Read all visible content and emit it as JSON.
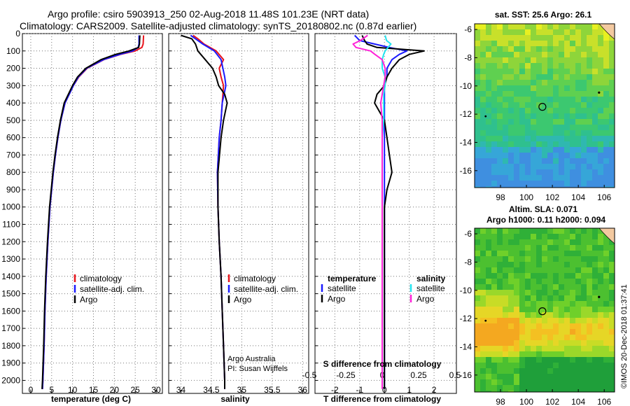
{
  "header": {
    "title_line1": "Argo profile: csiro 5903913_250 02-Aug-2018 11.48S 101.23E (NRT data)",
    "title_line2": "Climatology: CARS2009. Satellite-adjusted climatology: synTS_20180802.nc (0.87d earlier)"
  },
  "colors": {
    "climatology": "#e8141c",
    "satellite_adj": "#1a1aff",
    "argo": "#000000",
    "satellite_salinity": "#22e5f0",
    "argo_salinity_diff": "#ff22d8"
  },
  "depth_ticks": [
    "0",
    "100",
    "200",
    "300",
    "400",
    "500",
    "600",
    "700",
    "800",
    "900",
    "1000",
    "1100",
    "1200",
    "1300",
    "1400",
    "1500",
    "1600",
    "1700",
    "1800",
    "1900",
    "2000"
  ],
  "chart_data": [
    {
      "type": "line",
      "xlabel": "temperature (deg C)",
      "xlim": [
        -2,
        31.5
      ],
      "ylim": [
        0,
        2075
      ],
      "xticks": [
        "0",
        "5",
        "10",
        "15",
        "20",
        "25",
        "30"
      ],
      "legend": [
        "climatology",
        "satellite-adj. clim.",
        "Argo"
      ],
      "depth": [
        10,
        60,
        80,
        100,
        120,
        150,
        200,
        250,
        300,
        400,
        500,
        600,
        700,
        800,
        900,
        1000,
        1200,
        1400,
        1600,
        1800,
        2000,
        2050
      ],
      "series": [
        {
          "name": "climatology",
          "color": "#e8141c",
          "values": [
            27.0,
            26.9,
            26.6,
            25.0,
            21.5,
            17.5,
            13.5,
            11.5,
            10.2,
            8.2,
            7.2,
            6.5,
            5.9,
            5.4,
            5.0,
            4.6,
            4.1,
            3.7,
            3.4,
            3.2,
            2.9,
            2.8
          ]
        },
        {
          "name": "satellite-adj. clim.",
          "color": "#1a1aff",
          "values": [
            25.9,
            25.9,
            25.7,
            24.4,
            21.3,
            17.4,
            13.4,
            11.4,
            10.2,
            8.2,
            7.2,
            6.5,
            5.9,
            5.4,
            5.0,
            4.6,
            4.1,
            3.7,
            3.4,
            3.2,
            2.9,
            2.8
          ]
        },
        {
          "name": "Argo",
          "color": "#000000",
          "values": [
            26.1,
            26.0,
            25.8,
            23.5,
            20.3,
            16.8,
            13.2,
            11.2,
            10.0,
            8.0,
            7.1,
            6.4,
            5.8,
            5.3,
            4.9,
            4.5,
            4.0,
            3.6,
            3.3,
            3.1,
            2.8,
            2.7
          ]
        }
      ]
    },
    {
      "type": "line",
      "xlabel": "salinity",
      "xlim": [
        33.8,
        36.1
      ],
      "ylim": [
        0,
        2075
      ],
      "xticks": [
        "34",
        "34.5",
        "35",
        "35.5",
        "36"
      ],
      "legend": [
        "climatology",
        "satellite-adj. clim.",
        "Argo"
      ],
      "annotations": [
        "Argo Australia",
        "PI: Susan Wijffels"
      ],
      "depth": [
        10,
        30,
        60,
        100,
        150,
        200,
        250,
        300,
        350,
        400,
        500,
        600,
        800,
        1000,
        1200,
        1400,
        1600,
        1800,
        2000,
        2050
      ],
      "series": [
        {
          "name": "climatology",
          "color": "#e8141c",
          "values": [
            34.2,
            34.28,
            34.38,
            34.58,
            34.7,
            34.63,
            34.66,
            34.7,
            34.69,
            34.68,
            34.66,
            34.63,
            34.6,
            34.61,
            34.63,
            34.66,
            34.68,
            34.7,
            34.72,
            34.72
          ]
        },
        {
          "name": "satellite-adj. clim.",
          "color": "#1a1aff",
          "values": [
            34.16,
            34.24,
            34.36,
            34.55,
            34.66,
            34.69,
            34.72,
            34.74,
            34.71,
            34.68,
            34.66,
            34.63,
            34.6,
            34.61,
            34.63,
            34.66,
            34.68,
            34.7,
            34.72,
            34.72
          ]
        },
        {
          "name": "Argo",
          "color": "#000000",
          "values": [
            34.0,
            34.18,
            34.24,
            34.28,
            34.4,
            34.52,
            34.58,
            34.62,
            34.72,
            34.76,
            34.7,
            34.66,
            34.61,
            34.61,
            34.63,
            34.66,
            34.68,
            34.7,
            34.72,
            34.72
          ]
        }
      ]
    },
    {
      "type": "line",
      "xlabel": "T difference from climatology",
      "xlabel_top": "S difference from climatology",
      "xlim": [
        -2.8,
        2.9
      ],
      "ylim": [
        0,
        2075
      ],
      "xticks": [
        "-2",
        "-1",
        "0",
        "1",
        "2"
      ],
      "xticks_top": [
        "-0.5",
        "-0.25",
        "0",
        "0.25",
        "0.5"
      ],
      "legend_titles": [
        "temperature",
        "salinity"
      ],
      "legend": [
        "satellite",
        "Argo",
        "satellite",
        "Argo"
      ],
      "depth": [
        10,
        40,
        60,
        80,
        100,
        120,
        150,
        200,
        250,
        300,
        350,
        400,
        500,
        600,
        700,
        800,
        900,
        1000,
        1200,
        1400,
        1600,
        1800,
        2000,
        2050
      ],
      "series": [
        {
          "name": "temperature satellite",
          "color": "#1a1aff",
          "values": [
            -1.2,
            -1.0,
            -0.4,
            0.2,
            0.9,
            0.6,
            0.3,
            0.1,
            0.1,
            0.0,
            0.0,
            0.0,
            0.0,
            0.0,
            0.0,
            0.0,
            0.0,
            0.0,
            0.0,
            0.0,
            0.0,
            0.0,
            0.0,
            0.0
          ]
        },
        {
          "name": "temperature Argo",
          "color": "#000000",
          "values": [
            -0.9,
            -0.8,
            -0.7,
            -0.3,
            1.6,
            1.0,
            0.6,
            0.3,
            0.1,
            0.0,
            -0.3,
            -0.4,
            0.0,
            0.1,
            0.2,
            0.3,
            0.1,
            0.0,
            0.0,
            0.0,
            0.0,
            0.0,
            0.0,
            0.0
          ]
        },
        {
          "name": "salinity satellite",
          "color": "#22e5f0",
          "values": [
            0.02,
            0.03,
            0.06,
            0.04,
            0.02,
            0.01,
            0.0,
            0.0,
            0.02,
            0.02,
            0.01,
            0.01,
            0.01,
            0.0,
            0.0,
            0.0,
            0.0,
            0.0,
            0.0,
            0.0,
            0.0,
            0.0,
            0.0,
            0.0
          ]
        },
        {
          "name": "salinity Argo",
          "color": "#ff22d8",
          "values": [
            -0.1,
            -0.15,
            -0.2,
            -0.18,
            -0.08,
            -0.05,
            0.0,
            0.02,
            0.02,
            0.01,
            0.0,
            -0.01,
            0.0,
            0.0,
            0.0,
            0.0,
            0.0,
            0.0,
            0.0,
            0.0,
            0.0,
            0.0,
            0.0,
            0.0
          ]
        }
      ]
    },
    {
      "type": "heatmap",
      "title": "sat. SST: 25.6 Argo: 26.1",
      "xlim": [
        96,
        106.8
      ],
      "ylim": [
        -17.2,
        -5.6
      ],
      "xticks": [
        "98",
        "100",
        "102",
        "104",
        "106"
      ],
      "yticks": [
        "-6",
        "-8",
        "-10",
        "-12",
        "-14",
        "-16"
      ],
      "marker": {
        "lon": 101.23,
        "lat": -11.48
      }
    },
    {
      "type": "heatmap",
      "title": "Altim. SLA: 0.071",
      "subtitle": "Argo h1000: 0.11 h2000: 0.094",
      "xlim": [
        96,
        106.8
      ],
      "ylim": [
        -17.2,
        -5.6
      ],
      "xticks": [
        "98",
        "100",
        "102",
        "104",
        "106"
      ],
      "yticks": [
        "-6",
        "-8",
        "-10",
        "-12",
        "-14",
        "-16"
      ],
      "marker": {
        "lon": 101.23,
        "lat": -11.48
      }
    }
  ],
  "credit": "©IMOS 20-Dec-2018 01:37:41"
}
